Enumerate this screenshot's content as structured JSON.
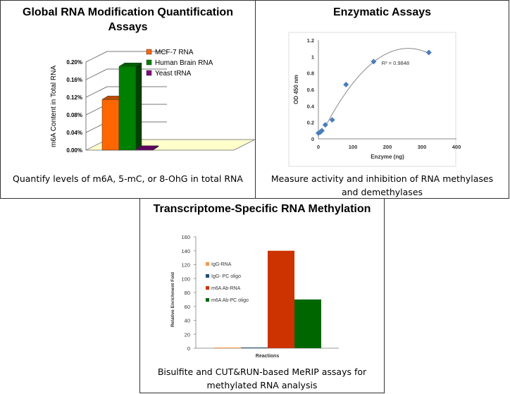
{
  "panels": [
    {
      "title": "Global RNA Modification Quantification Assays",
      "caption": "Quantify levels of m6A, 5-mC, or 8-OhG in total RNA"
    },
    {
      "title": "Enzymatic Assays",
      "caption": "Measure activity and inhibition of RNA methylases and demethylases"
    },
    {
      "title": "Transcriptome-Specific RNA Methylation",
      "caption": "Bisulfite and CUT&RUN-based MeRIP assays for methylated RNA analysis"
    }
  ],
  "chart_data": [
    {
      "type": "bar",
      "style": "3d",
      "ylabel": "m6A Content in Total RNA",
      "ylim": [
        0,
        0.2
      ],
      "yticks": [
        "0.00%",
        "0.04%",
        "0.08%",
        "0.12%",
        "0.16%",
        "0.20%"
      ],
      "legend": "top-right",
      "series": [
        {
          "name": "MCF-7 RNA",
          "value": 0.115,
          "color": "#ff6600"
        },
        {
          "name": "Human Brain RNA",
          "value": 0.19,
          "color": "#008000"
        },
        {
          "name": "Yeast tRNA",
          "value": 0.002,
          "color": "#800080"
        }
      ]
    },
    {
      "type": "scatter",
      "xlabel": "Enzyme (ng)",
      "ylabel": "OD 450 nm",
      "xlim": [
        0,
        400
      ],
      "ylim": [
        0,
        1.2
      ],
      "xticks": [
        "0",
        "100",
        "200",
        "300",
        "400"
      ],
      "yticks": [
        "0",
        "0.2",
        "0.4",
        "0.6",
        "0.8",
        "1",
        "1.2"
      ],
      "x": [
        0,
        5,
        10,
        20,
        40,
        80,
        160,
        320
      ],
      "y": [
        0.07,
        0.08,
        0.1,
        0.17,
        0.23,
        0.66,
        0.94,
        1.05
      ],
      "color": "#4a7ebb",
      "trendline": {
        "type": "polynomial",
        "annotation": "R² = 0.9848"
      }
    },
    {
      "type": "bar",
      "xlabel": "Reactions",
      "ylabel": "Relative Enrichment Fold",
      "ylim": [
        0,
        160
      ],
      "yticks": [
        "0",
        "20",
        "40",
        "60",
        "80",
        "100",
        "120",
        "140",
        "160"
      ],
      "legend": "left",
      "series": [
        {
          "name": "IgG-RNA",
          "value": 1,
          "color": "#f79646"
        },
        {
          "name": "IgG- PC oligo",
          "value": 1,
          "color": "#1f4e79"
        },
        {
          "name": "m6A Ab-RNA",
          "value": 140,
          "color": "#cc3300"
        },
        {
          "name": "m6A Ab-PC oligo",
          "value": 70,
          "color": "#006600"
        }
      ]
    }
  ]
}
